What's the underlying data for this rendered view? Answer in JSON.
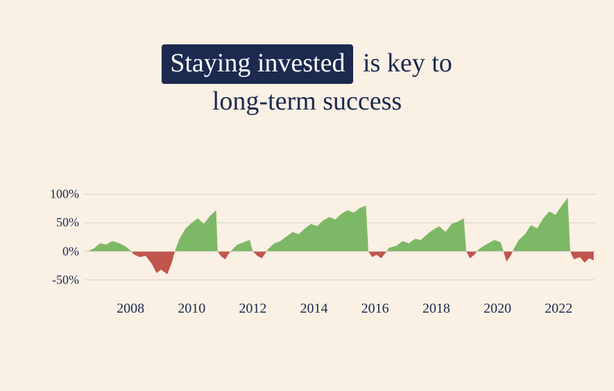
{
  "title": {
    "highlight": "Staying invested",
    "rest_line1": " is key to",
    "line2": "long-term success",
    "fontsize": 38,
    "highlight_bg": "#1b2a4e",
    "highlight_fg": "#ffffff",
    "text_color": "#1b2a4e"
  },
  "chart": {
    "type": "area",
    "background_color": "#faf0e4",
    "grid_color": "#d8cfc0",
    "axis_color": "#1b2a4e",
    "positive_color": "#7db866",
    "negative_color": "#c1554d",
    "y_axis": {
      "min": -60,
      "max": 110,
      "ticks": [
        -50,
        0,
        50,
        100
      ],
      "labels": [
        "-50%",
        "0%",
        "50%",
        "100%"
      ],
      "label_fontsize": 18
    },
    "x_axis": {
      "min": 2006.5,
      "max": 2023.2,
      "ticks": [
        2008,
        2010,
        2012,
        2014,
        2016,
        2018,
        2020,
        2022
      ],
      "labels": [
        "2008",
        "2010",
        "2012",
        "2014",
        "2016",
        "2018",
        "2020",
        "2022"
      ],
      "label_fontsize": 20
    },
    "series": [
      {
        "x": 2006.6,
        "y": 0
      },
      {
        "x": 2006.8,
        "y": 5
      },
      {
        "x": 2007.0,
        "y": 14
      },
      {
        "x": 2007.2,
        "y": 12
      },
      {
        "x": 2007.4,
        "y": 18
      },
      {
        "x": 2007.6,
        "y": 15
      },
      {
        "x": 2007.8,
        "y": 10
      },
      {
        "x": 2008.0,
        "y": 2
      },
      {
        "x": 2008.1,
        "y": -5
      },
      {
        "x": 2008.3,
        "y": -10
      },
      {
        "x": 2008.5,
        "y": -8
      },
      {
        "x": 2008.7,
        "y": -22
      },
      {
        "x": 2008.85,
        "y": -38
      },
      {
        "x": 2009.0,
        "y": -32
      },
      {
        "x": 2009.2,
        "y": -40
      },
      {
        "x": 2009.35,
        "y": -20
      },
      {
        "x": 2009.45,
        "y": 0
      },
      {
        "x": 2009.6,
        "y": 22
      },
      {
        "x": 2009.8,
        "y": 40
      },
      {
        "x": 2010.0,
        "y": 50
      },
      {
        "x": 2010.2,
        "y": 58
      },
      {
        "x": 2010.4,
        "y": 48
      },
      {
        "x": 2010.6,
        "y": 62
      },
      {
        "x": 2010.8,
        "y": 72
      },
      {
        "x": 2010.85,
        "y": 0
      },
      {
        "x": 2010.95,
        "y": -8
      },
      {
        "x": 2011.1,
        "y": -14
      },
      {
        "x": 2011.2,
        "y": -5
      },
      {
        "x": 2011.3,
        "y": 2
      },
      {
        "x": 2011.5,
        "y": 12
      },
      {
        "x": 2011.7,
        "y": 16
      },
      {
        "x": 2011.9,
        "y": 20
      },
      {
        "x": 2012.0,
        "y": 0
      },
      {
        "x": 2012.15,
        "y": -8
      },
      {
        "x": 2012.3,
        "y": -12
      },
      {
        "x": 2012.4,
        "y": -4
      },
      {
        "x": 2012.5,
        "y": 4
      },
      {
        "x": 2012.7,
        "y": 14
      },
      {
        "x": 2012.9,
        "y": 18
      },
      {
        "x": 2013.1,
        "y": 26
      },
      {
        "x": 2013.3,
        "y": 34
      },
      {
        "x": 2013.5,
        "y": 30
      },
      {
        "x": 2013.7,
        "y": 40
      },
      {
        "x": 2013.9,
        "y": 48
      },
      {
        "x": 2014.1,
        "y": 44
      },
      {
        "x": 2014.3,
        "y": 54
      },
      {
        "x": 2014.5,
        "y": 60
      },
      {
        "x": 2014.7,
        "y": 56
      },
      {
        "x": 2014.9,
        "y": 66
      },
      {
        "x": 2015.1,
        "y": 72
      },
      {
        "x": 2015.3,
        "y": 68
      },
      {
        "x": 2015.5,
        "y": 76
      },
      {
        "x": 2015.7,
        "y": 80
      },
      {
        "x": 2015.78,
        "y": 0
      },
      {
        "x": 2015.9,
        "y": -10
      },
      {
        "x": 2016.05,
        "y": -6
      },
      {
        "x": 2016.2,
        "y": -12
      },
      {
        "x": 2016.35,
        "y": -2
      },
      {
        "x": 2016.45,
        "y": 6
      },
      {
        "x": 2016.7,
        "y": 10
      },
      {
        "x": 2016.9,
        "y": 18
      },
      {
        "x": 2017.1,
        "y": 14
      },
      {
        "x": 2017.3,
        "y": 22
      },
      {
        "x": 2017.5,
        "y": 20
      },
      {
        "x": 2017.7,
        "y": 30
      },
      {
        "x": 2017.9,
        "y": 38
      },
      {
        "x": 2018.1,
        "y": 44
      },
      {
        "x": 2018.3,
        "y": 34
      },
      {
        "x": 2018.5,
        "y": 48
      },
      {
        "x": 2018.7,
        "y": 52
      },
      {
        "x": 2018.9,
        "y": 58
      },
      {
        "x": 2018.98,
        "y": 0
      },
      {
        "x": 2019.1,
        "y": -12
      },
      {
        "x": 2019.25,
        "y": -6
      },
      {
        "x": 2019.35,
        "y": 2
      },
      {
        "x": 2019.5,
        "y": 8
      },
      {
        "x": 2019.7,
        "y": 14
      },
      {
        "x": 2019.9,
        "y": 20
      },
      {
        "x": 2020.1,
        "y": 16
      },
      {
        "x": 2020.2,
        "y": 0
      },
      {
        "x": 2020.3,
        "y": -18
      },
      {
        "x": 2020.45,
        "y": -6
      },
      {
        "x": 2020.55,
        "y": 6
      },
      {
        "x": 2020.7,
        "y": 20
      },
      {
        "x": 2020.9,
        "y": 30
      },
      {
        "x": 2021.1,
        "y": 46
      },
      {
        "x": 2021.3,
        "y": 40
      },
      {
        "x": 2021.5,
        "y": 58
      },
      {
        "x": 2021.7,
        "y": 70
      },
      {
        "x": 2021.9,
        "y": 64
      },
      {
        "x": 2022.1,
        "y": 80
      },
      {
        "x": 2022.3,
        "y": 94
      },
      {
        "x": 2022.38,
        "y": 0
      },
      {
        "x": 2022.5,
        "y": -14
      },
      {
        "x": 2022.7,
        "y": -10
      },
      {
        "x": 2022.85,
        "y": -20
      },
      {
        "x": 2023.0,
        "y": -12
      },
      {
        "x": 2023.15,
        "y": -16
      }
    ]
  }
}
